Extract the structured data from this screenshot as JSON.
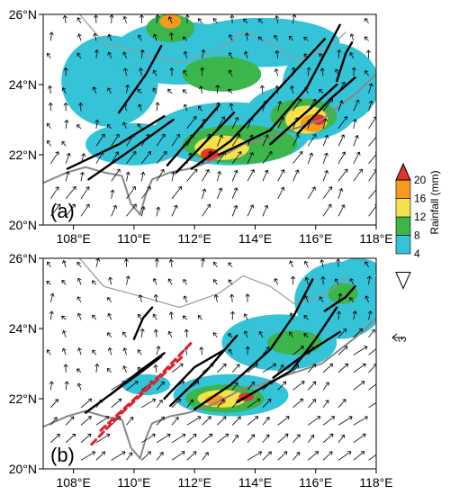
{
  "chart_data": {
    "type": "heatmap",
    "x_ticks": [
      "108°E",
      "110°E",
      "112°E",
      "114°E",
      "116°E",
      "118°E"
    ],
    "y_ticks": [
      "20°N",
      "22°N",
      "24°N",
      "26°N"
    ],
    "xlim": [
      107,
      118
    ],
    "ylim": [
      20,
      26
    ],
    "colorbar": {
      "title": "Rainfall (mm)",
      "ticks": [
        "4",
        "8",
        "12",
        "16",
        "20"
      ],
      "bounds": [
        4,
        8,
        12,
        16,
        20
      ],
      "colors": [
        "#ffffff",
        "#35c3d8",
        "#3cb54a",
        "#f5e14a",
        "#f39a1f",
        "#e6332a"
      ],
      "extend": "both"
    },
    "wind_reference_label": "3",
    "panels": [
      {
        "label": "(a)",
        "rain_blobs": [
          {
            "lon": 109.2,
            "lat": 24.1,
            "rx": 1.6,
            "ry": 1.3,
            "level": 1
          },
          {
            "lon": 111.5,
            "lat": 24.9,
            "rx": 2.2,
            "ry": 0.9,
            "level": 1
          },
          {
            "lon": 114.2,
            "lat": 25.2,
            "rx": 2.6,
            "ry": 0.7,
            "level": 1
          },
          {
            "lon": 116.5,
            "lat": 24.0,
            "rx": 1.6,
            "ry": 1.2,
            "level": 1
          },
          {
            "lon": 110.0,
            "lat": 22.3,
            "rx": 1.6,
            "ry": 0.6,
            "level": 1
          },
          {
            "lon": 113.2,
            "lat": 22.6,
            "rx": 2.6,
            "ry": 0.9,
            "level": 1
          },
          {
            "lon": 115.5,
            "lat": 23.2,
            "rx": 1.8,
            "ry": 0.8,
            "level": 1
          },
          {
            "lon": 111.2,
            "lat": 25.6,
            "rx": 0.8,
            "ry": 0.4,
            "level": 2
          },
          {
            "lon": 112.9,
            "lat": 24.3,
            "rx": 1.3,
            "ry": 0.5,
            "level": 2
          },
          {
            "lon": 113.5,
            "lat": 22.3,
            "rx": 1.9,
            "ry": 0.55,
            "level": 2
          },
          {
            "lon": 115.6,
            "lat": 23.1,
            "rx": 1.1,
            "ry": 0.5,
            "level": 2
          },
          {
            "lon": 112.9,
            "lat": 22.2,
            "rx": 0.9,
            "ry": 0.35,
            "level": 3
          },
          {
            "lon": 115.7,
            "lat": 23.0,
            "rx": 0.7,
            "ry": 0.4,
            "level": 3
          },
          {
            "lon": 111.2,
            "lat": 25.8,
            "rx": 0.35,
            "ry": 0.2,
            "level": 4
          },
          {
            "lon": 115.9,
            "lat": 22.9,
            "rx": 0.4,
            "ry": 0.25,
            "level": 4
          },
          {
            "lon": 112.5,
            "lat": 22.0,
            "rx": 0.3,
            "ry": 0.18,
            "level": 5
          },
          {
            "lon": 116.1,
            "lat": 23.0,
            "rx": 0.22,
            "ry": 0.15,
            "level": 5
          }
        ],
        "lines": [
          [
            [
              107.8,
              21.6
            ],
            [
              109.5,
              22.3
            ],
            [
              111.0,
              23.1
            ]
          ],
          [
            [
              108.5,
              21.3
            ],
            [
              110.0,
              22.2
            ],
            [
              111.3,
              23.0
            ]
          ],
          [
            [
              109.5,
              23.2
            ],
            [
              110.4,
              24.3
            ],
            [
              110.9,
              25.1
            ]
          ],
          [
            [
              111.1,
              21.7
            ],
            [
              112.0,
              22.6
            ],
            [
              112.8,
              23.4
            ]
          ],
          [
            [
              111.4,
              21.5
            ],
            [
              112.4,
              22.4
            ],
            [
              113.3,
              23.2
            ]
          ],
          [
            [
              111.9,
              21.6
            ],
            [
              113.2,
              22.4
            ],
            [
              114.8,
              23.9
            ],
            [
              116.3,
              25.3
            ]
          ],
          [
            [
              112.8,
              22.0
            ],
            [
              114.5,
              22.7
            ],
            [
              115.7,
              23.9
            ],
            [
              116.8,
              25.7
            ]
          ],
          [
            [
              114.5,
              22.3
            ],
            [
              115.8,
              23.3
            ],
            [
              116.7,
              24.0
            ]
          ],
          [
            [
              115.4,
              22.6
            ],
            [
              116.5,
              23.6
            ],
            [
              117.3,
              24.2
            ]
          ],
          [
            [
              116.7,
              24.1
            ],
            [
              117.0,
              24.9
            ],
            [
              117.2,
              25.2
            ]
          ]
        ]
      },
      {
        "label": "(b)",
        "rain_blobs": [
          {
            "lon": 116.8,
            "lat": 24.8,
            "rx": 1.5,
            "ry": 1.1,
            "level": 1
          },
          {
            "lon": 114.8,
            "lat": 23.6,
            "rx": 1.9,
            "ry": 0.8,
            "level": 1
          },
          {
            "lon": 113.2,
            "lat": 22.1,
            "rx": 1.9,
            "ry": 0.6,
            "level": 1
          },
          {
            "lon": 110.4,
            "lat": 22.4,
            "rx": 0.8,
            "ry": 0.3,
            "level": 1
          },
          {
            "lon": 117.4,
            "lat": 25.7,
            "rx": 0.7,
            "ry": 0.3,
            "level": 1
          },
          {
            "lon": 115.3,
            "lat": 23.6,
            "rx": 0.9,
            "ry": 0.35,
            "level": 2
          },
          {
            "lon": 113.0,
            "lat": 22.0,
            "rx": 1.3,
            "ry": 0.4,
            "level": 2
          },
          {
            "lon": 116.9,
            "lat": 25.0,
            "rx": 0.5,
            "ry": 0.3,
            "level": 2
          },
          {
            "lon": 112.9,
            "lat": 22.0,
            "rx": 0.8,
            "ry": 0.25,
            "level": 3
          },
          {
            "lon": 112.7,
            "lat": 21.95,
            "rx": 0.35,
            "ry": 0.15,
            "level": 4
          },
          {
            "lon": 113.7,
            "lat": 22.05,
            "rx": 0.25,
            "ry": 0.12,
            "level": 5
          }
        ],
        "lines": [
          [
            [
              108.4,
              21.6
            ],
            [
              109.5,
              22.3
            ],
            [
              110.3,
              22.8
            ],
            [
              110.9,
              23.2
            ]
          ],
          [
            [
              109.2,
              22.1
            ],
            [
              110.2,
              22.8
            ],
            [
              111.0,
              23.3
            ]
          ],
          [
            [
              110.0,
              23.7
            ],
            [
              110.3,
              24.3
            ],
            [
              110.6,
              24.6
            ]
          ],
          [
            [
              111.0,
              22.0
            ],
            [
              112.0,
              22.9
            ],
            [
              113.0,
              23.4
            ]
          ],
          [
            [
              111.2,
              21.8
            ],
            [
              112.4,
              22.8
            ],
            [
              113.4,
              23.8
            ]
          ],
          [
            [
              112.0,
              21.7
            ],
            [
              113.2,
              22.4
            ],
            [
              114.5,
              23.4
            ],
            [
              115.3,
              24.4
            ],
            [
              115.9,
              25.4
            ]
          ],
          [
            [
              113.4,
              21.9
            ],
            [
              115.2,
              22.8
            ],
            [
              116.0,
              23.7
            ],
            [
              116.7,
              24.6
            ]
          ],
          [
            [
              114.6,
              22.6
            ],
            [
              115.7,
              23.3
            ],
            [
              116.8,
              23.9
            ]
          ],
          [
            [
              116.3,
              24.5
            ],
            [
              117.0,
              24.9
            ],
            [
              117.3,
              25.2
            ]
          ]
        ],
        "dashed_lines": [
          [
            [
              108.6,
              20.7
            ],
            [
              109.6,
              21.6
            ],
            [
              110.6,
              22.4
            ],
            [
              111.6,
              23.2
            ]
          ],
          [
            [
              108.9,
              21.1
            ],
            [
              109.9,
              21.9
            ],
            [
              110.9,
              22.7
            ],
            [
              111.9,
              23.6
            ]
          ]
        ]
      }
    ]
  }
}
